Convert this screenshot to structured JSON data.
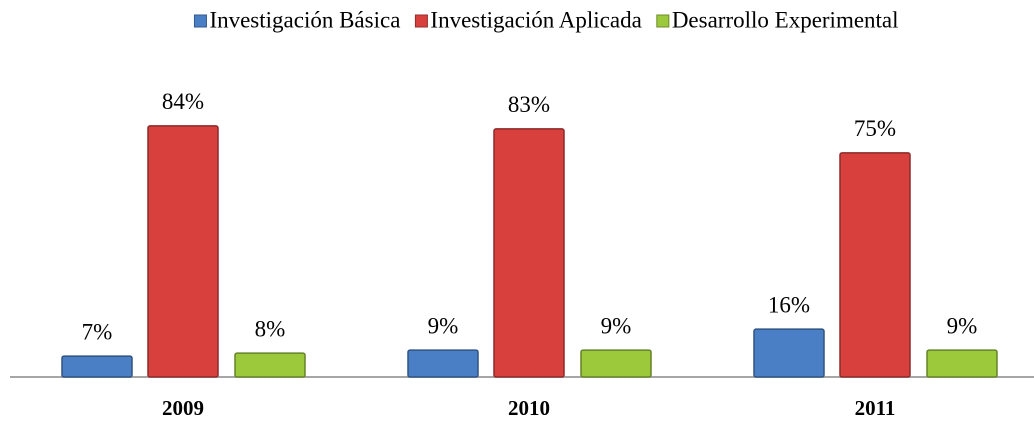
{
  "chart_data": {
    "type": "bar",
    "categories": [
      "2009",
      "2010",
      "2011"
    ],
    "series": [
      {
        "name": "Investigación Básica",
        "color": "#4a7fc6",
        "values": [
          7,
          9,
          16
        ],
        "value_labels": [
          "7%",
          "9%",
          "16%"
        ]
      },
      {
        "name": "Investigación Aplicada",
        "color": "#d8403e",
        "values": [
          84,
          83,
          75
        ],
        "value_labels": [
          "84%",
          "83%",
          "75%"
        ]
      },
      {
        "name": "Desarrollo Experimental",
        "color": "#9cc83c",
        "values": [
          8,
          9,
          9
        ],
        "value_labels": [
          "8%",
          "9%",
          "9%"
        ]
      }
    ],
    "ylim": [
      0,
      90
    ],
    "legend": "top"
  }
}
